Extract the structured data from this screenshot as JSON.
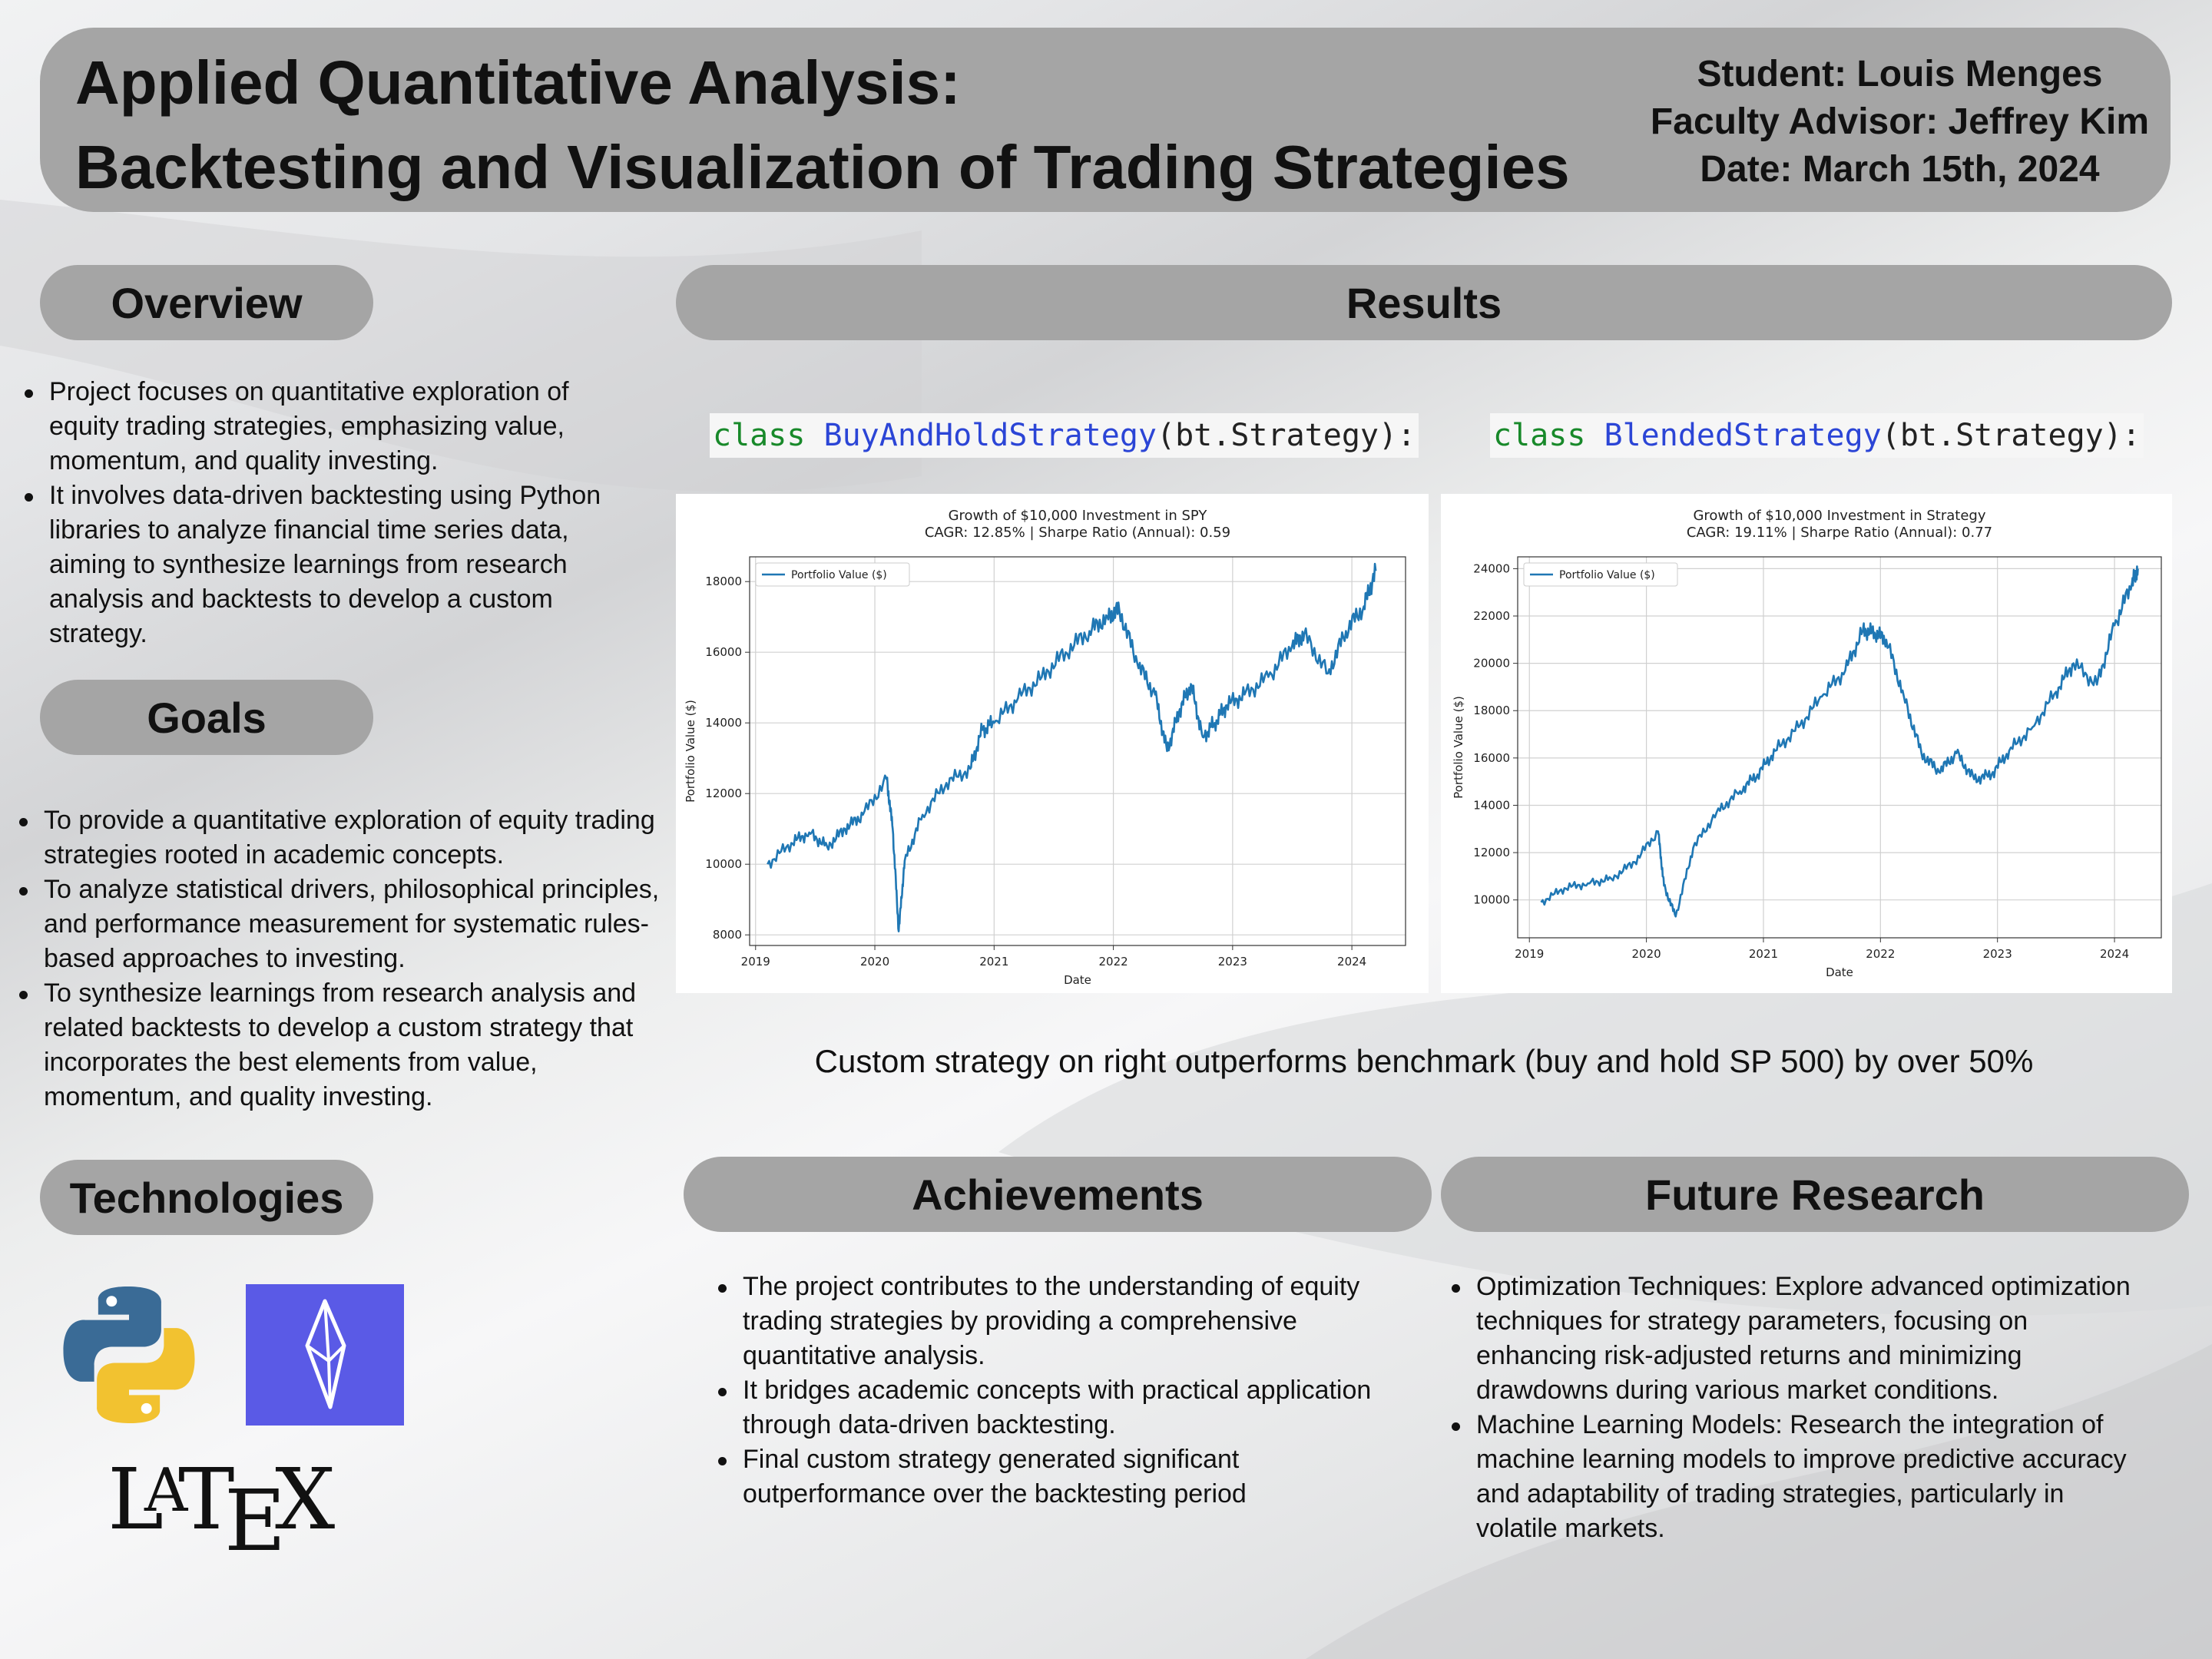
{
  "header": {
    "title_line1": "Applied Quantitative Analysis:",
    "title_line2": "Backtesting and Visualization of Trading Strategies",
    "student": "Student: Louis Menges",
    "advisor": "Faculty Advisor: Jeffrey Kim",
    "date": "Date: March 15th, 2024"
  },
  "overview": {
    "title": "Overview",
    "bullets": [
      "Project focuses on quantitative exploration of equity trading strategies, emphasizing value, momentum, and quality investing.",
      "It involves data-driven backtesting using Python libraries to analyze financial time series data, aiming to synthesize learnings from research analysis and backtests to develop a custom strategy."
    ]
  },
  "goals": {
    "title": "Goals",
    "bullets": [
      "To provide a quantitative exploration of equity trading strategies rooted in academic concepts.",
      "To analyze statistical drivers, philosophical principles, and performance measurement for systematic rules-based approaches to investing.",
      "To synthesize learnings from research analysis and related backtests to develop a custom strategy that incorporates the best elements from value, momentum, and quality investing."
    ]
  },
  "technologies": {
    "title": "Technologies",
    "icons": [
      "python-logo-icon",
      "backtrader-logo-icon",
      "latex-logo-icon"
    ],
    "latex_logo_text": "LATEX"
  },
  "results": {
    "title": "Results",
    "code_left": {
      "keyword": "class",
      "name": "BuyAndHoldStrategy",
      "rest": "(bt.Strategy):"
    },
    "code_right": {
      "keyword": "class",
      "name": "BlendedStrategy",
      "rest": "(bt.Strategy):"
    },
    "caption": "Custom strategy on right outperforms benchmark (buy and hold SP 500) by over 50%"
  },
  "achievements": {
    "title": "Achievements",
    "bullets": [
      "The project contributes to the understanding of equity trading strategies by providing a comprehensive quantitative analysis.",
      "It bridges academic concepts with practical application through data-driven backtesting.",
      "Final custom strategy generated significant outperformance over the backtesting period"
    ]
  },
  "future": {
    "title": "Future Research",
    "bullets": [
      "Optimization Techniques: Explore advanced optimization techniques for strategy parameters, focusing on enhancing risk-adjusted returns and minimizing drawdowns during various market conditions.",
      "Machine Learning Models: Research the integration of machine learning models to improve predictive accuracy and adaptability of trading strategies, particularly in volatile markets."
    ]
  },
  "colors": {
    "line": "#1f77b4",
    "pill": "#a5a5a5",
    "code_keyword": "#18892a",
    "code_class": "#2b45d6"
  },
  "chart_data": [
    {
      "type": "line",
      "title": "Growth of $10,000 Investment in SPY",
      "subtitle": "CAGR: 12.85% | Sharpe Ratio (Annual): 0.59",
      "xlabel": "Date",
      "ylabel": "Portfolio Value ($)",
      "legend": "Portfolio Value ($)",
      "legend_position": "top-left",
      "grid": true,
      "xlim": [
        2018.95,
        2024.45
      ],
      "ylim": [
        7700,
        18700
      ],
      "xticks": [
        2019,
        2020,
        2021,
        2022,
        2023,
        2024
      ],
      "yticks": [
        8000,
        10000,
        12000,
        14000,
        16000,
        18000
      ],
      "series": [
        {
          "x": [
            2019.1,
            2019.3,
            2019.45,
            2019.6,
            2019.75,
            2019.9,
            2020.1,
            2020.15,
            2020.2,
            2020.25,
            2020.4,
            2020.6,
            2020.8,
            2020.9,
            2021.0,
            2021.2,
            2021.4,
            2021.6,
            2021.8,
            2021.95,
            2022.05,
            2022.2,
            2022.35,
            2022.45,
            2022.55,
            2022.65,
            2022.75,
            2022.85,
            2022.95,
            2023.1,
            2023.3,
            2023.5,
            2023.6,
            2023.8,
            2023.95,
            2024.1,
            2024.2
          ],
          "y": [
            10000,
            10600,
            10900,
            10500,
            11000,
            11400,
            12400,
            11000,
            8100,
            10100,
            11400,
            12300,
            12700,
            13800,
            14000,
            14700,
            15300,
            16000,
            16600,
            17000,
            17200,
            15700,
            14800,
            13200,
            14300,
            15100,
            13600,
            14000,
            14500,
            14800,
            15300,
            16200,
            16500,
            15400,
            16600,
            17300,
            18300
          ]
        }
      ]
    },
    {
      "type": "line",
      "title": "Growth of $10,000 Investment in Strategy",
      "subtitle": "CAGR: 19.11% | Sharpe Ratio (Annual): 0.77",
      "xlabel": "Date",
      "ylabel": "Portfolio Value ($)",
      "legend": "Portfolio Value ($)",
      "legend_position": "top-left",
      "grid": true,
      "xlim": [
        2018.9,
        2024.4
      ],
      "ylim": [
        8400,
        24500
      ],
      "xticks": [
        2019,
        2020,
        2021,
        2022,
        2023,
        2024
      ],
      "yticks": [
        10000,
        12000,
        14000,
        16000,
        18000,
        20000,
        22000,
        24000
      ],
      "series": [
        {
          "x": [
            2019.1,
            2019.3,
            2019.5,
            2019.7,
            2019.9,
            2020.1,
            2020.15,
            2020.25,
            2020.4,
            2020.6,
            2020.8,
            2020.95,
            2021.1,
            2021.3,
            2021.5,
            2021.7,
            2021.85,
            2021.95,
            2022.05,
            2022.2,
            2022.35,
            2022.5,
            2022.65,
            2022.8,
            2022.95,
            2023.1,
            2023.3,
            2023.5,
            2023.65,
            2023.85,
            2024.0,
            2024.15,
            2024.2
          ],
          "y": [
            9900,
            10500,
            10700,
            10900,
            11600,
            12900,
            10600,
            9300,
            12200,
            13700,
            14600,
            15300,
            16300,
            17300,
            18600,
            19700,
            21400,
            21300,
            21000,
            18600,
            16200,
            15400,
            16200,
            15100,
            15300,
            16300,
            17300,
            18800,
            20000,
            19100,
            21600,
            23400,
            24000
          ]
        }
      ]
    }
  ]
}
